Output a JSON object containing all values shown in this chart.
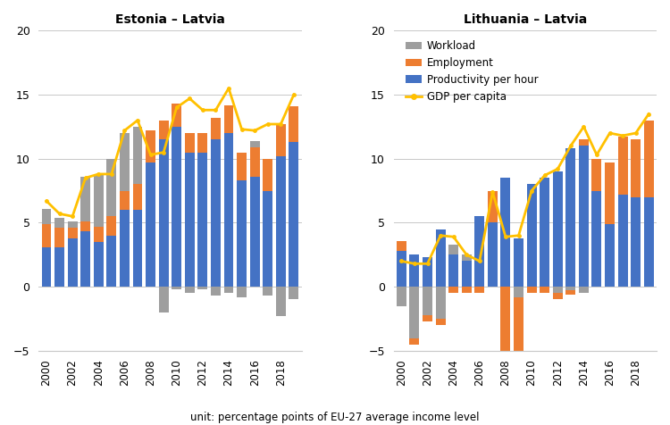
{
  "years": [
    2000,
    2001,
    2002,
    2003,
    2004,
    2005,
    2006,
    2007,
    2008,
    2009,
    2010,
    2011,
    2012,
    2013,
    2014,
    2015,
    2016,
    2017,
    2018,
    2019
  ],
  "estonia": {
    "productivity": [
      3.1,
      3.1,
      3.8,
      4.3,
      3.5,
      4.0,
      6.0,
      6.0,
      9.7,
      11.5,
      12.5,
      10.5,
      10.5,
      11.5,
      12.0,
      8.3,
      8.6,
      7.5,
      10.2,
      11.3
    ],
    "employment": [
      1.8,
      1.5,
      0.8,
      0.8,
      1.2,
      1.5,
      1.5,
      2.0,
      2.5,
      1.5,
      1.8,
      1.5,
      1.5,
      1.7,
      2.2,
      2.2,
      2.3,
      2.5,
      2.5,
      2.8
    ],
    "workload": [
      1.2,
      0.8,
      0.5,
      3.5,
      4.0,
      4.5,
      4.5,
      4.5,
      0.0,
      -2.0,
      -0.2,
      -0.5,
      -0.2,
      -0.7,
      -0.5,
      -0.8,
      0.5,
      -0.7,
      -2.3,
      -1.0
    ],
    "gdp": [
      6.7,
      5.7,
      5.5,
      8.5,
      8.8,
      8.8,
      12.2,
      13.0,
      10.3,
      10.5,
      14.0,
      14.7,
      13.8,
      13.8,
      15.5,
      12.3,
      12.2,
      12.7,
      12.7,
      15.0
    ]
  },
  "lithuania": {
    "productivity": [
      2.8,
      2.5,
      2.3,
      4.5,
      2.5,
      2.0,
      5.5,
      5.0,
      8.5,
      3.8,
      8.0,
      8.5,
      9.0,
      10.8,
      11.0,
      7.5,
      4.9,
      7.2,
      7.0,
      7.0
    ],
    "employment": [
      0.8,
      -0.5,
      -0.5,
      -0.5,
      -0.5,
      -0.5,
      -0.5,
      2.5,
      -5.0,
      -4.8,
      -0.5,
      -0.5,
      -0.5,
      -0.3,
      0.5,
      2.5,
      4.8,
      4.5,
      4.5,
      6.0
    ],
    "workload": [
      -1.5,
      -4.0,
      -2.2,
      -2.5,
      0.8,
      0.5,
      0.0,
      0.0,
      0.0,
      -0.8,
      0.0,
      0.0,
      -0.5,
      -0.3,
      -0.5,
      0.0,
      0.0,
      0.0,
      0.0,
      0.0
    ],
    "gdp": [
      2.0,
      1.8,
      1.8,
      4.0,
      3.9,
      2.5,
      2.0,
      7.4,
      3.9,
      4.0,
      7.5,
      8.7,
      9.2,
      11.0,
      12.5,
      10.3,
      12.0,
      11.8,
      12.0,
      13.5
    ]
  },
  "colors": {
    "workload": "#9E9E9E",
    "employment": "#ED7D31",
    "productivity": "#4472C4",
    "gdp": "#FFC000"
  },
  "ylim": [
    -5,
    20
  ],
  "yticks": [
    -5,
    0,
    5,
    10,
    15,
    20
  ],
  "title_left": "Estonia – Latvia",
  "title_right": "Lithuania – Latvia",
  "xlabel": "unit: percentage points of EU-27 average income level",
  "legend_labels": [
    "Workload",
    "Employment",
    "Productivity per hour",
    "GDP per capita"
  ],
  "legend_colors": [
    "#9E9E9E",
    "#ED7D31",
    "#4472C4",
    "#FFC000"
  ]
}
